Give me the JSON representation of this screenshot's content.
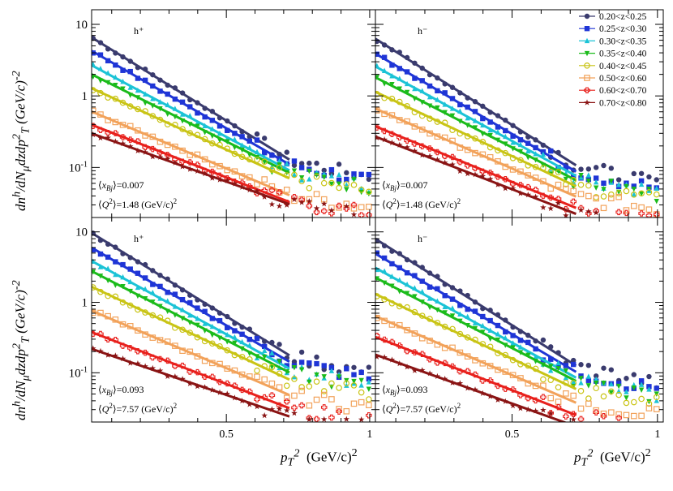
{
  "chart_data": {
    "type": "scatter",
    "y_scale": "log",
    "ylim": [
      0.02,
      16
    ],
    "xlim": [
      0.03,
      1.02
    ],
    "ytick_values": [
      0.1,
      1,
      10
    ],
    "ytick_labels": [
      "10<sup>-1</sup>",
      "1",
      "10"
    ],
    "xtick_labels": [
      "0.5",
      "1"
    ],
    "xtick_values": [
      0.5,
      1.0
    ],
    "ylabel": "dn^h/dN_μ dz dp_T^2 (GeV/c)^-2",
    "xlabel": "p_T^2 (GeV/c)^2",
    "legend": [
      {
        "label": "0.20<z<0.25",
        "color": "#3a3b6e",
        "marker": "circle"
      },
      {
        "label": "0.25<z<0.30",
        "color": "#1f35d6",
        "marker": "square"
      },
      {
        "label": "0.30<z<0.35",
        "color": "#1bc3d6",
        "marker": "triangle"
      },
      {
        "label": "0.35<z<0.40",
        "color": "#1bbb1b",
        "marker": "triangle-down"
      },
      {
        "label": "0.40<z<0.45",
        "color": "#c9c415",
        "marker": "open-circle"
      },
      {
        "label": "0.50<z<0.60",
        "color": "#f2a25a",
        "marker": "open-square"
      },
      {
        "label": "0.60<z<0.70",
        "color": "#e8201c",
        "marker": "cross"
      },
      {
        "label": "0.70<z<0.80",
        "color": "#8a1414",
        "marker": "star"
      }
    ],
    "legend_position": "top-right",
    "panels": [
      {
        "label": "h⁺",
        "xbj": "⟨x_Bj⟩=0.007",
        "q2": "⟨Q²⟩=1.48 (GeV/c)²",
        "x_fit_max": 0.72,
        "series": [
          {
            "a": 7.8,
            "b": 5.7
          },
          {
            "a": 5.0,
            "b": 5.3
          },
          {
            "a": 3.1,
            "b": 4.9
          },
          {
            "a": 2.3,
            "b": 4.6
          },
          {
            "a": 1.45,
            "b": 4.2
          },
          {
            "a": 0.68,
            "b": 3.9
          },
          {
            "a": 0.44,
            "b": 3.6
          },
          {
            "a": 0.33,
            "b": 3.3
          }
        ]
      },
      {
        "label": "h⁻",
        "xbj": "⟨x_Bj⟩=0.007",
        "q2": "⟨Q²⟩=1.48 (GeV/c)²",
        "x_fit_max": 0.72,
        "series": [
          {
            "a": 7.5,
            "b": 5.9
          },
          {
            "a": 4.6,
            "b": 5.5
          },
          {
            "a": 3.0,
            "b": 5.1
          },
          {
            "a": 2.1,
            "b": 4.8
          },
          {
            "a": 1.3,
            "b": 4.4
          },
          {
            "a": 0.75,
            "b": 4.1
          },
          {
            "a": 0.42,
            "b": 3.8
          },
          {
            "a": 0.3,
            "b": 3.6
          }
        ]
      },
      {
        "label": "h⁺",
        "xbj": "⟨x_Bj⟩=0.093",
        "q2": "⟨Q²⟩=7.57 (GeV/c)²",
        "x_fit_max": 0.72,
        "series": [
          {
            "a": 11.5,
            "b": 5.8
          },
          {
            "a": 7.0,
            "b": 5.4
          },
          {
            "a": 4.5,
            "b": 5.1
          },
          {
            "a": 3.2,
            "b": 4.8
          },
          {
            "a": 1.9,
            "b": 4.4
          },
          {
            "a": 0.86,
            "b": 4.0
          },
          {
            "a": 0.42,
            "b": 3.6
          },
          {
            "a": 0.24,
            "b": 3.2
          }
        ]
      },
      {
        "label": "h⁻",
        "xbj": "⟨x_Bj⟩=0.093",
        "q2": "⟨Q²⟩=7.57 (GeV/c)²",
        "x_fit_max": 0.72,
        "series": [
          {
            "a": 9.5,
            "b": 6.0
          },
          {
            "a": 5.8,
            "b": 5.6
          },
          {
            "a": 3.6,
            "b": 5.2
          },
          {
            "a": 2.6,
            "b": 4.9
          },
          {
            "a": 1.5,
            "b": 4.5
          },
          {
            "a": 0.72,
            "b": 4.1
          },
          {
            "a": 0.36,
            "b": 3.7
          },
          {
            "a": 0.2,
            "b": 3.4
          }
        ]
      }
    ]
  },
  "labels": {
    "ylabel_html": "dn<sup>h</sup>/dN<sub>μ</sub>dzdp<sup>2</sup><sub>T</sub> (GeV/c)<sup>-2</sup>",
    "xlabel_left": "p<sub>T</sub><sup>2</sup>",
    "xlabel_unit": "(GeV/c)<sup>2</sup>"
  }
}
